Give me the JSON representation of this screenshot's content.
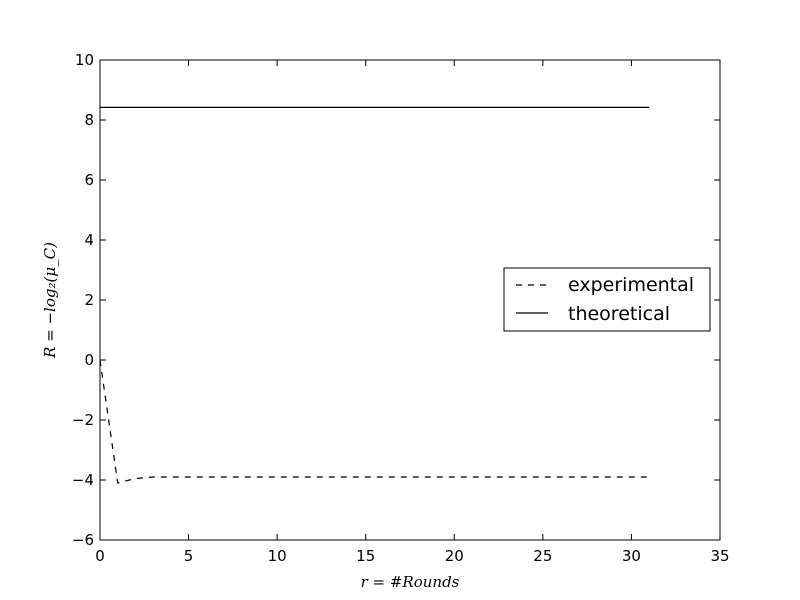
{
  "chart_data": {
    "type": "line",
    "title": "",
    "xlabel": "r = #Rounds",
    "ylabel": "R = −log₂(μ_C)",
    "xlim": [
      0,
      35
    ],
    "ylim": [
      -6,
      10
    ],
    "xticks": [
      0,
      5,
      10,
      15,
      20,
      25,
      30,
      35
    ],
    "yticks": [
      -6,
      -4,
      -2,
      0,
      2,
      4,
      6,
      8,
      10
    ],
    "xtick_labels": [
      "0",
      "5",
      "10",
      "15",
      "20",
      "25",
      "30",
      "35"
    ],
    "ytick_labels": [
      "−6",
      "−4",
      "−2",
      "0",
      "2",
      "4",
      "6",
      "8",
      "10"
    ],
    "grid": false,
    "legend_position": "center-right",
    "series": [
      {
        "name": "experimental",
        "style": "dashed",
        "color": "#000000",
        "x": [
          0,
          1,
          2,
          3,
          4,
          5,
          6,
          7,
          8,
          9,
          10,
          11,
          12,
          13,
          14,
          15,
          16,
          17,
          18,
          19,
          20,
          21,
          22,
          23,
          24,
          25,
          26,
          27,
          28,
          29,
          30,
          31
        ],
        "y": [
          0,
          -4.1,
          -3.95,
          -3.9,
          -3.9,
          -3.9,
          -3.9,
          -3.9,
          -3.9,
          -3.9,
          -3.9,
          -3.9,
          -3.9,
          -3.9,
          -3.9,
          -3.9,
          -3.9,
          -3.9,
          -3.9,
          -3.9,
          -3.9,
          -3.9,
          -3.9,
          -3.9,
          -3.9,
          -3.9,
          -3.9,
          -3.9,
          -3.9,
          -3.9,
          -3.9,
          -3.9
        ]
      },
      {
        "name": "theoretical",
        "style": "solid",
        "color": "#000000",
        "x": [
          0,
          31
        ],
        "y": [
          8.42,
          8.42
        ]
      }
    ]
  }
}
